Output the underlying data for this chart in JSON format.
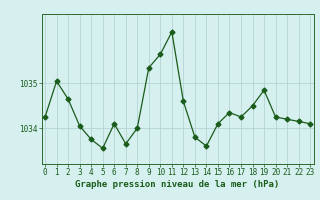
{
  "x": [
    0,
    1,
    2,
    3,
    4,
    5,
    6,
    7,
    8,
    9,
    10,
    11,
    12,
    13,
    14,
    15,
    16,
    17,
    18,
    19,
    20,
    21,
    22,
    23
  ],
  "y": [
    1034.25,
    1035.05,
    1034.65,
    1034.05,
    1033.75,
    1033.55,
    1034.1,
    1033.65,
    1034.0,
    1035.35,
    1035.65,
    1036.15,
    1034.6,
    1033.8,
    1033.6,
    1034.1,
    1034.35,
    1034.25,
    1034.5,
    1034.85,
    1034.25,
    1034.2,
    1034.15,
    1034.1
  ],
  "line_color": "#1a5c1a",
  "marker": "D",
  "markersize": 2.5,
  "bg_color": "#d6f0f0",
  "grid_color": "#b0cece",
  "spine_color": "#2d6a2d",
  "xlabel": "Graphe pression niveau de la mer (hPa)",
  "xlabel_fontsize": 6.5,
  "tick_fontsize": 5.5,
  "yticks": [
    1034,
    1035
  ],
  "ylim": [
    1033.2,
    1036.55
  ],
  "xlim": [
    -0.3,
    23.3
  ],
  "linewidth": 0.9
}
